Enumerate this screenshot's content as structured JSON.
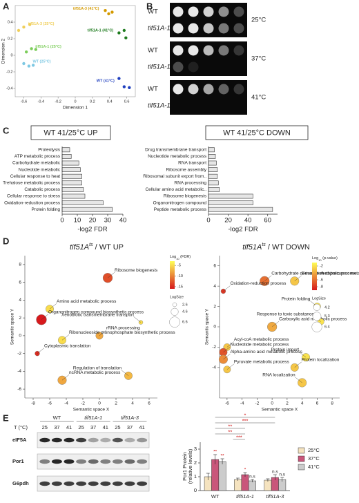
{
  "figure": {
    "panel_labels": [
      "A",
      "B",
      "C",
      "D",
      "E"
    ]
  },
  "spot_assay": {
    "strains": [
      "WT",
      "tif51A-1"
    ],
    "temperatures": [
      "25°C",
      "37°C",
      "41°C"
    ]
  },
  "western": {
    "temperature_label": "T (°C)",
    "temperatures": [
      "25",
      "37",
      "41"
    ],
    "strains": [
      "WT",
      "tif51A-1",
      "tif51A-3"
    ],
    "proteins": [
      "eIF5A",
      "Por1",
      "G6pdh"
    ]
  },
  "chart_data": [
    {
      "type": "scatter",
      "xlabel": "Dimension 1",
      "ylabel": "Dimension 2",
      "xlim": [
        -0.7,
        0.7
      ],
      "xticks": [
        -0.6,
        -0.4,
        -0.2,
        0,
        0.2,
        0.4,
        0.6
      ],
      "ylim": [
        -0.5,
        0.6
      ],
      "yticks": [
        -0.4,
        -0.2,
        0,
        0.2,
        0.4
      ],
      "series": [
        {
          "name": "tif51A-3 (41°C)",
          "color": "#d49a00",
          "x": [
            0.35,
            0.39,
            0.43
          ],
          "values": [
            0.54,
            0.5,
            0.52
          ]
        },
        {
          "name": "tif51A-3 (25°C)",
          "color": "#f0cf5a",
          "x": [
            -0.66,
            -0.6,
            -0.53
          ],
          "values": [
            0.3,
            0.34,
            0.37
          ]
        },
        {
          "name": "tif51A-1 (41°C)",
          "color": "#1e7b1e",
          "x": [
            0.51,
            0.57,
            0.59
          ],
          "values": [
            0.27,
            0.3,
            0.21
          ]
        },
        {
          "name": "tif51A-1 (25°C)",
          "color": "#7ccd5a",
          "x": [
            -0.57,
            -0.51,
            -0.46
          ],
          "values": [
            0.04,
            0.08,
            0.07
          ]
        },
        {
          "name": "WT (25°C)",
          "color": "#7ec8e3",
          "x": [
            -0.6,
            -0.54,
            -0.49
          ],
          "values": [
            -0.1,
            -0.13,
            -0.12
          ]
        },
        {
          "name": "WT (41°C)",
          "color": "#1f3fbf",
          "x": [
            0.51,
            0.57,
            0.63
          ],
          "values": [
            -0.28,
            -0.38,
            -0.39
          ]
        }
      ]
    },
    {
      "type": "barh",
      "title": "WT 41/25°C UP",
      "xlabel": "-log2 FDR",
      "color": "#e6e6e6",
      "categories": [
        "Proteolysis",
        "ATP metabolic process",
        "Carbohydrate metabolic",
        "Nucleotide metabolic",
        "Cellular response to heat",
        "Trehalose metabolic process",
        "Catabolic process",
        "Cellular response to stress",
        "Oxidation-reduction process",
        "Protein folding"
      ],
      "values": [
        5,
        6,
        11,
        12,
        13,
        13,
        14,
        15,
        27,
        33
      ],
      "xlim": [
        0,
        40
      ],
      "xticks": [
        0,
        10,
        20,
        30,
        40
      ]
    },
    {
      "type": "barh",
      "title": "WT 41/25°C DOWN",
      "xlabel": "-log2 FDR",
      "color": "#e6e6e6",
      "categories": [
        "Drug transmembrane transport",
        "Nucleotide metabolic process",
        "RNA transport",
        "Ribosome assembly",
        "Ribosomal subunit export from..",
        "RNA processing",
        "Cellular amino acid metabolic..",
        "Ribosome biogenesis",
        "Organonitrogen compound",
        "Peptide metabolic process"
      ],
      "values": [
        6,
        7,
        8,
        9,
        9,
        10,
        11,
        45,
        45,
        65
      ],
      "xlim": [
        0,
        70
      ],
      "xticks": [
        0,
        20,
        40,
        60
      ]
    },
    {
      "type": "bubble",
      "title_parts": [
        "tif51A",
        "ts",
        " / WT UP"
      ],
      "xlabel": "Semantic space X",
      "ylabel": "Semantic space Y",
      "xlim": [
        -9,
        7
      ],
      "xticks": [
        -8,
        -6,
        -4,
        -2,
        0,
        2,
        4,
        6
      ],
      "ylim": [
        -7,
        9
      ],
      "yticks": [
        -6,
        -4,
        -2,
        0,
        2,
        4,
        6,
        8
      ],
      "labels": [
        "Ribosome biogenesis",
        "Amino acid metabolic process",
        "Xenobiotic transmembrane transport",
        "Organonitrogen compound biosynthetic process",
        "rRNA processing",
        "Ribonucleoside monophosphate biosynthetic process",
        "Cytoplasmic translation",
        "Regulation of translation",
        "ncRNA metabolic process"
      ],
      "x": [
        1,
        -6,
        5,
        -7,
        0,
        -4.5,
        -7.5,
        3.5,
        -4.5
      ],
      "values": [
        6.5,
        3,
        1.5,
        1.8,
        0,
        -0.5,
        -2,
        -4.5,
        -5
      ],
      "sizes": [
        6,
        5,
        2.6,
        6.5,
        4.6,
        5,
        3,
        5,
        5.5
      ],
      "color_values": [
        -13,
        -5,
        -5,
        -16,
        -8,
        -5,
        -15,
        -7,
        -8
      ],
      "color_label_parts": [
        "Log",
        "10",
        " (FDR)"
      ],
      "clim": [
        -16,
        -3
      ],
      "cticks": [
        -15,
        -10,
        -5
      ],
      "colormap": [
        "#d7191c",
        "#ffff55"
      ],
      "size_label": "LogSize",
      "size_ticks": [
        2.6,
        4.6,
        6.6
      ]
    },
    {
      "type": "bubble",
      "title_parts": [
        "tif51A",
        "ts",
        " / WT DOWN"
      ],
      "xlabel": "Semantic space X",
      "ylabel": "Semantic space Y",
      "xlim": [
        -7,
        9
      ],
      "xticks": [
        -6,
        -4,
        -2,
        0,
        2,
        4,
        6,
        8
      ],
      "ylim": [
        -7,
        7
      ],
      "yticks": [
        -4,
        -2,
        0,
        2,
        4,
        6
      ],
      "labels": [
        "Carbohydrate derivative metabolic process",
        "Generation of precursor metabolites and energy",
        "Oxidation-reduction process",
        "Protein folding",
        "Carboxylic acid metabolic process",
        "Response to toxic substance",
        "Acyl-coA metabolic process",
        "Nucleotide metabolic process",
        "Alpha-amino acid metabolic process",
        "Protein import",
        "Protein localization",
        "Pyruvate metabolic process",
        "RNA localization"
      ],
      "x": [
        -1,
        3,
        -6.5,
        6,
        0,
        6.5,
        -6,
        -6.5,
        -6.5,
        4.5,
        3,
        -6,
        4
      ],
      "values": [
        4.5,
        4.5,
        3.5,
        2,
        0,
        0.5,
        -2,
        -2.5,
        -3.2,
        -3,
        -4,
        -4.2,
        -5.5
      ],
      "sizes": [
        6,
        5.5,
        3,
        4.5,
        6,
        4,
        4.5,
        5,
        5.5,
        5,
        5,
        4.5,
        5.5
      ],
      "color_values": [
        -6,
        -3,
        -8,
        -2,
        -4,
        -2,
        -3,
        -7,
        -5,
        -2,
        -3,
        -3,
        -3
      ],
      "color_label_parts": [
        "Log",
        "10",
        " (p-value)"
      ],
      "clim": [
        -9,
        -1
      ],
      "cticks": [
        -8,
        -6,
        -4,
        -2
      ],
      "colormap": [
        "#d7191c",
        "#ffff55"
      ],
      "size_label": "LogSize",
      "size_ticks": [
        4.2,
        5.3,
        6.4
      ]
    },
    {
      "type": "grouped_bar",
      "ylabel_lines": [
        "Por1 Protein",
        "(relative levels)"
      ],
      "categories": [
        "WT",
        "tif51A-1",
        "tif51A-3"
      ],
      "series": [
        {
          "name": "25°C",
          "color": "#f5e3bf",
          "values": [
            1.0,
            0.8,
            0.75
          ],
          "errors": [
            0.25,
            0.1,
            0.1
          ]
        },
        {
          "name": "37°C",
          "color": "#c9567a",
          "values": [
            2.25,
            1.15,
            0.95
          ],
          "errors": [
            0.35,
            0.15,
            0.2
          ]
        },
        {
          "name": "41°C",
          "color": "#cccccc",
          "values": [
            2.1,
            0.7,
            0.8
          ],
          "errors": [
            0.2,
            0.1,
            0.15
          ]
        }
      ],
      "ylim": [
        0,
        3.5
      ],
      "yticks": [
        0,
        1,
        2,
        3
      ],
      "significance": [
        "*",
        "***",
        "**",
        "**",
        "***"
      ],
      "bar_annotations": [
        {
          "text": "**",
          "category": "WT",
          "series": "37°C"
        },
        {
          "text": "**",
          "category": "WT",
          "series": "41°C"
        },
        {
          "text": "*",
          "category": "tif51A-1",
          "series": "37°C"
        },
        {
          "text": "n.s",
          "category": "tif51A-1",
          "series": "41°C"
        },
        {
          "text": "n.s",
          "category": "tif51A-3",
          "series": "37°C"
        },
        {
          "text": "n.s",
          "category": "tif51A-3",
          "series": "41°C"
        }
      ]
    }
  ]
}
